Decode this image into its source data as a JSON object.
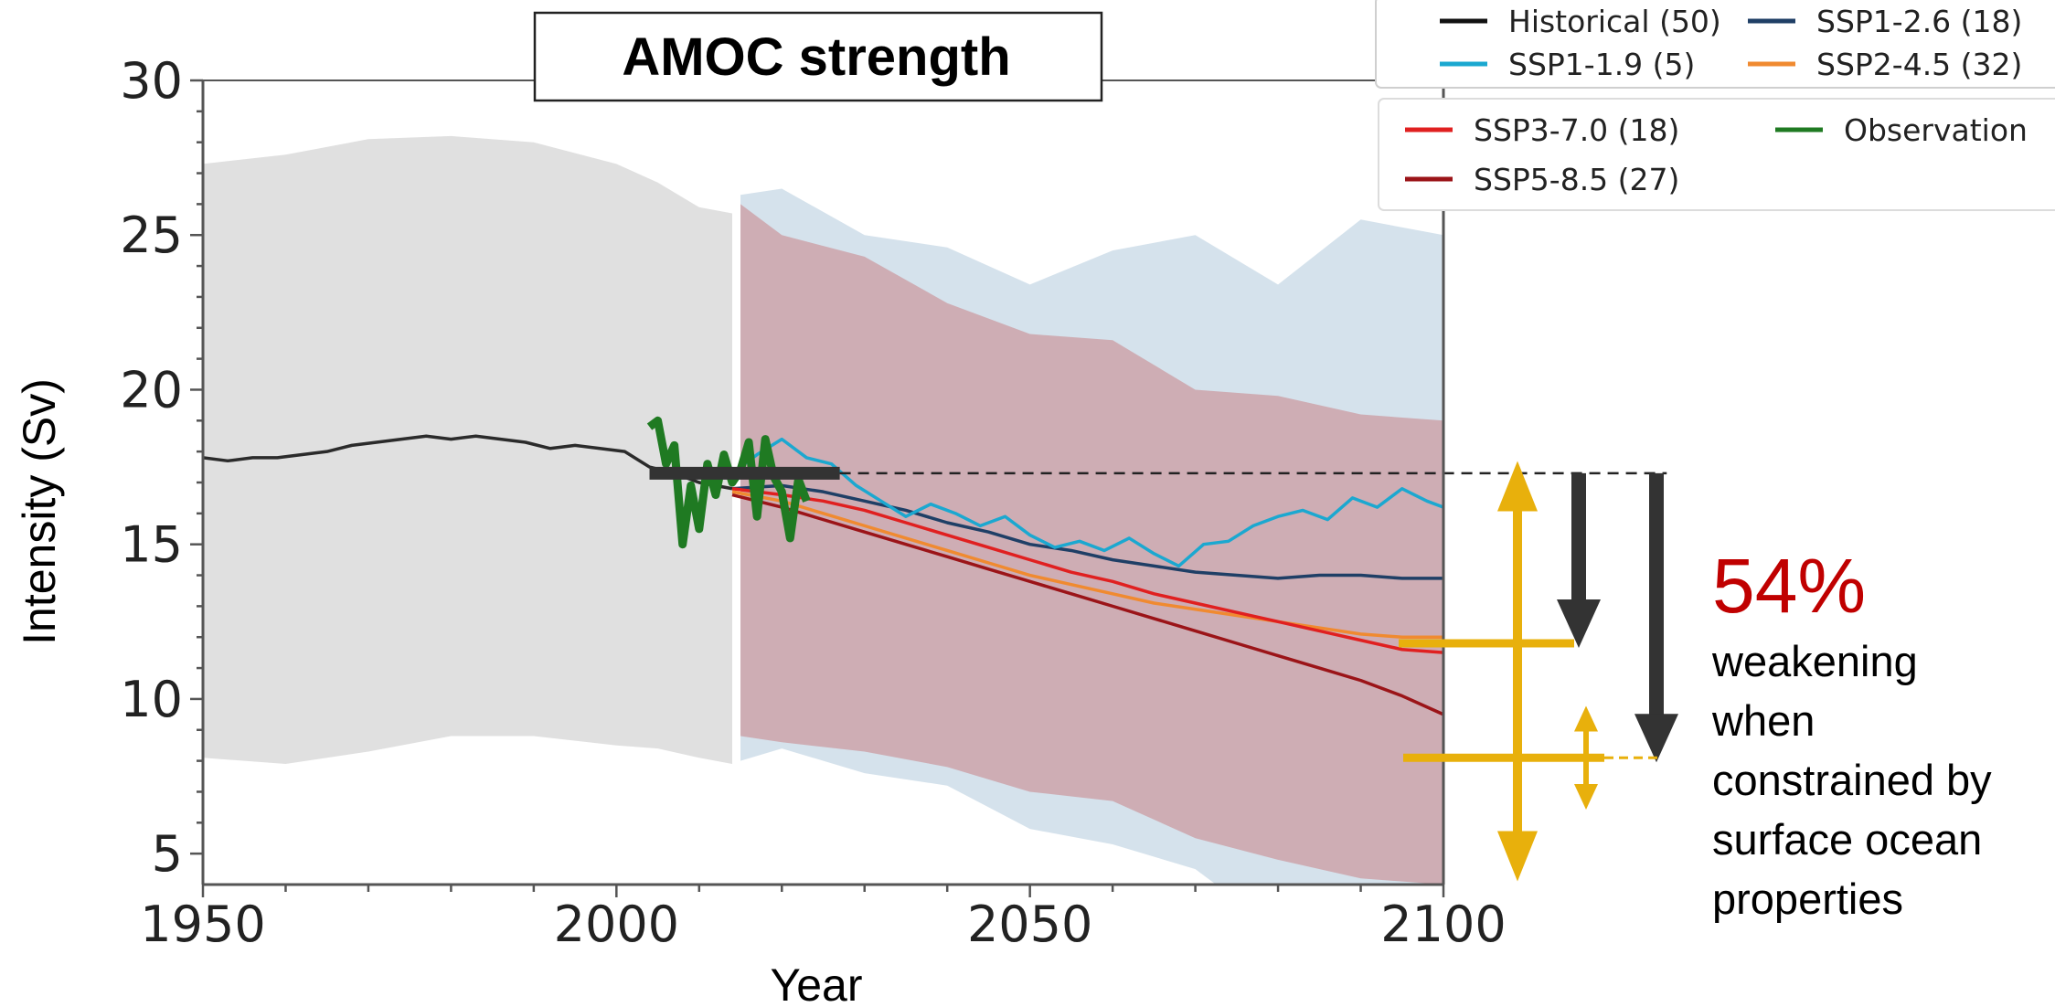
{
  "chart_data": {
    "type": "line",
    "title": "AMOC strength",
    "xlabel": "Year",
    "ylabel": "Intensity (Sv)",
    "xlim": [
      1950,
      2100
    ],
    "ylim": [
      4,
      30
    ],
    "xticks": [
      1950,
      2000,
      2050,
      2100
    ],
    "yticks": [
      5,
      10,
      15,
      20,
      25,
      30
    ],
    "grid": false,
    "legend_position": "top-right",
    "series": [
      {
        "name": "Historical (50)",
        "color": "#2b2b2b",
        "x": [
          1950,
          1953,
          1956,
          1959,
          1962,
          1965,
          1968,
          1971,
          1974,
          1977,
          1980,
          1983,
          1986,
          1989,
          1992,
          1995,
          1998,
          2001,
          2004,
          2007,
          2010,
          2014
        ],
        "y": [
          17.8,
          17.7,
          17.8,
          17.8,
          17.9,
          18.0,
          18.2,
          18.3,
          18.4,
          18.5,
          18.4,
          18.5,
          18.4,
          18.3,
          18.1,
          18.2,
          18.1,
          18.0,
          17.5,
          17.3,
          17.0,
          16.8
        ]
      },
      {
        "name": "SSP1-2.6 (18)",
        "color": "#1f3f66",
        "x": [
          2014,
          2020,
          2025,
          2030,
          2035,
          2040,
          2045,
          2050,
          2055,
          2060,
          2065,
          2070,
          2075,
          2080,
          2085,
          2090,
          2095,
          2100
        ],
        "y": [
          16.8,
          16.9,
          16.7,
          16.4,
          16.1,
          15.7,
          15.4,
          15.0,
          14.8,
          14.5,
          14.3,
          14.1,
          14.0,
          13.9,
          14.0,
          14.0,
          13.9,
          13.9
        ]
      },
      {
        "name": "SSP1-1.9 (5)",
        "color": "#1ba8d0",
        "x": [
          2014,
          2017,
          2020,
          2023,
          2026,
          2029,
          2032,
          2035,
          2038,
          2041,
          2044,
          2047,
          2050,
          2053,
          2056,
          2059,
          2062,
          2065,
          2068,
          2071,
          2074,
          2077,
          2080,
          2083,
          2086,
          2089,
          2092,
          2095,
          2098,
          2100
        ],
        "y": [
          17.3,
          17.9,
          18.4,
          17.8,
          17.6,
          16.9,
          16.4,
          15.9,
          16.3,
          16.0,
          15.6,
          15.9,
          15.3,
          14.9,
          15.1,
          14.8,
          15.2,
          14.7,
          14.3,
          15.0,
          15.1,
          15.6,
          15.9,
          16.1,
          15.8,
          16.5,
          16.2,
          16.8,
          16.4,
          16.2
        ]
      },
      {
        "name": "SSP2-4.5 (32)",
        "color": "#f08a30",
        "x": [
          2014,
          2020,
          2025,
          2030,
          2035,
          2040,
          2045,
          2050,
          2055,
          2060,
          2065,
          2070,
          2075,
          2080,
          2085,
          2090,
          2095,
          2100
        ],
        "y": [
          16.7,
          16.4,
          16.0,
          15.6,
          15.2,
          14.8,
          14.4,
          14.0,
          13.7,
          13.4,
          13.1,
          12.9,
          12.7,
          12.5,
          12.3,
          12.1,
          12.0,
          12.0
        ]
      },
      {
        "name": "SSP3-7.0 (18)",
        "color": "#e02020",
        "x": [
          2014,
          2020,
          2025,
          2030,
          2035,
          2040,
          2045,
          2050,
          2055,
          2060,
          2065,
          2070,
          2075,
          2080,
          2085,
          2090,
          2095,
          2100
        ],
        "y": [
          16.8,
          16.6,
          16.4,
          16.1,
          15.7,
          15.3,
          14.9,
          14.5,
          14.1,
          13.8,
          13.4,
          13.1,
          12.8,
          12.5,
          12.2,
          11.9,
          11.6,
          11.5
        ]
      },
      {
        "name": "SSP5-8.5 (27)",
        "color": "#9b1418",
        "x": [
          2014,
          2020,
          2025,
          2030,
          2035,
          2040,
          2045,
          2050,
          2055,
          2060,
          2065,
          2070,
          2075,
          2080,
          2085,
          2090,
          2095,
          2100
        ],
        "y": [
          16.6,
          16.2,
          15.8,
          15.4,
          15.0,
          14.6,
          14.2,
          13.8,
          13.4,
          13.0,
          12.6,
          12.2,
          11.8,
          11.4,
          11.0,
          10.6,
          10.1,
          9.5
        ]
      },
      {
        "name": "Observation",
        "color": "#1f7a22",
        "x": [
          2004,
          2005,
          2006,
          2007,
          2008,
          2009,
          2010,
          2011,
          2012,
          2013,
          2014,
          2015,
          2016,
          2017,
          2018,
          2019,
          2020,
          2021,
          2022,
          2023
        ],
        "y": [
          18.8,
          19.0,
          17.6,
          18.2,
          15.0,
          16.9,
          15.5,
          17.6,
          16.6,
          17.9,
          17.0,
          17.4,
          18.3,
          15.9,
          18.4,
          17.2,
          16.7,
          15.2,
          17.1,
          16.4
        ]
      }
    ],
    "uncertainty_bands": [
      {
        "series": "Historical (50)",
        "color": "#cccccc",
        "x": [
          1950,
          1960,
          1970,
          1980,
          1990,
          2000,
          2005,
          2010,
          2014
        ],
        "upper": [
          27.3,
          27.6,
          28.1,
          28.2,
          28.0,
          27.3,
          26.7,
          25.9,
          25.7
        ],
        "lower": [
          8.1,
          7.9,
          8.3,
          8.8,
          8.8,
          8.5,
          8.4,
          8.1,
          7.9
        ]
      },
      {
        "series": "SSP1-1.9 (5)",
        "color": "#b9cfe0",
        "x": [
          2015,
          2020,
          2030,
          2040,
          2050,
          2060,
          2070,
          2080,
          2090,
          2100
        ],
        "upper": [
          26.3,
          26.5,
          25.0,
          24.6,
          23.4,
          24.5,
          25.0,
          23.4,
          25.5,
          25.0
        ],
        "lower": [
          8.0,
          8.4,
          7.6,
          7.2,
          5.8,
          5.3,
          4.5,
          2.5,
          2.0,
          2.0
        ]
      },
      {
        "series": "SSP5-8.5 (27)",
        "color": "#c98a90",
        "x": [
          2015,
          2020,
          2030,
          2040,
          2050,
          2060,
          2070,
          2080,
          2090,
          2100
        ],
        "upper": [
          26.0,
          25.0,
          24.3,
          22.8,
          21.8,
          21.6,
          20.0,
          19.8,
          19.2,
          19.0
        ],
        "lower": [
          8.8,
          8.6,
          8.3,
          7.8,
          7.0,
          6.7,
          5.5,
          4.8,
          4.2,
          4.0
        ]
      }
    ],
    "annotations": {
      "historical_reference": {
        "value": 17.3,
        "x_range": [
          2004,
          2027
        ]
      },
      "reference_extended_to": 2127,
      "constrained_end_value": 8.1,
      "unconstrained_end_value": 11.8
    }
  },
  "legend": {
    "items": [
      {
        "label": "Historical (50)",
        "color": "#111111"
      },
      {
        "label": "SSP1-2.6 (18)",
        "color": "#1f3f66"
      },
      {
        "label": "SSP1-1.9 (5)",
        "color": "#1ba8d0"
      },
      {
        "label": "SSP2-4.5 (32)",
        "color": "#f08a30"
      },
      {
        "label": "SSP3-7.0 (18)",
        "color": "#e02020"
      },
      {
        "label": "Observation",
        "color": "#1f7a22"
      },
      {
        "label": "SSP5-8.5 (27)",
        "color": "#9b1418"
      }
    ]
  },
  "annotation": {
    "percent": "54%",
    "line1": "weakening",
    "line2": "when",
    "line3": "constrained by",
    "line4": "surface ocean",
    "line5": "properties",
    "percent_color": "#c00000"
  },
  "colors": {
    "arrow_dark": "#333333",
    "arrow_gold": "#e8b00c"
  }
}
